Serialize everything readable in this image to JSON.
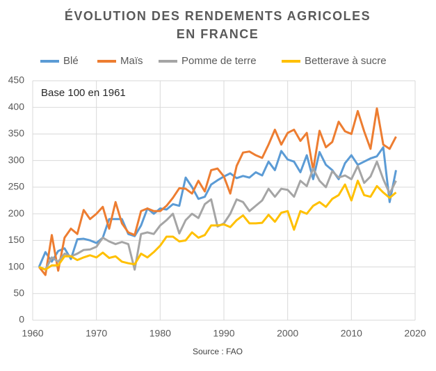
{
  "chart_data": {
    "type": "line",
    "title": [
      "ÉVOLUTION DES RENDEMENTS AGRICOLES",
      "EN FRANCE"
    ],
    "annotation": "Base 100 en 1961",
    "source": "Source : FAO",
    "x": [
      1961,
      1962,
      1963,
      1964,
      1965,
      1966,
      1967,
      1968,
      1969,
      1970,
      1971,
      1972,
      1973,
      1974,
      1975,
      1976,
      1977,
      1978,
      1979,
      1980,
      1981,
      1982,
      1983,
      1984,
      1985,
      1986,
      1987,
      1988,
      1989,
      1990,
      1991,
      1992,
      1993,
      1994,
      1995,
      1996,
      1997,
      1998,
      1999,
      2000,
      2001,
      2002,
      2003,
      2004,
      2005,
      2006,
      2007,
      2008,
      2009,
      2010,
      2011,
      2012,
      2013,
      2014,
      2015,
      2016,
      2017
    ],
    "series": [
      {
        "name": "Blé",
        "color": "#5b9bd5",
        "values": [
          100,
          128,
          110,
          130,
          135,
          115,
          152,
          153,
          150,
          145,
          155,
          190,
          190,
          190,
          162,
          158,
          178,
          210,
          200,
          210,
          208,
          218,
          215,
          268,
          250,
          228,
          232,
          255,
          263,
          270,
          276,
          267,
          271,
          268,
          278,
          272,
          298,
          282,
          318,
          302,
          298,
          278,
          310,
          265,
          316,
          292,
          282,
          265,
          295,
          310,
          292,
          298,
          304,
          308,
          325,
          222,
          282
        ]
      },
      {
        "name": "Maïs",
        "color": "#ed7d31",
        "values": [
          100,
          85,
          160,
          93,
          155,
          172,
          162,
          207,
          190,
          200,
          213,
          172,
          222,
          182,
          165,
          160,
          205,
          210,
          205,
          205,
          215,
          230,
          248,
          247,
          238,
          262,
          242,
          282,
          285,
          270,
          238,
          290,
          315,
          317,
          310,
          305,
          330,
          358,
          330,
          352,
          358,
          337,
          352,
          282,
          356,
          325,
          335,
          373,
          355,
          350,
          393,
          355,
          322,
          398,
          330,
          322,
          345
        ]
      },
      {
        "name": "Pomme de terre",
        "color": "#a5a5a5",
        "values": [
          100,
          95,
          118,
          110,
          125,
          120,
          125,
          132,
          133,
          138,
          155,
          148,
          143,
          147,
          143,
          95,
          162,
          165,
          162,
          178,
          188,
          200,
          163,
          188,
          200,
          192,
          218,
          227,
          176,
          182,
          200,
          227,
          222,
          205,
          215,
          225,
          247,
          232,
          247,
          245,
          232,
          262,
          252,
          285,
          262,
          250,
          280,
          268,
          272,
          265,
          290,
          258,
          270,
          298,
          265,
          238,
          262
        ]
      },
      {
        "name": "Betterave à sucre",
        "color": "#ffc000",
        "values": [
          100,
          95,
          103,
          103,
          120,
          120,
          113,
          118,
          122,
          118,
          127,
          117,
          120,
          110,
          107,
          105,
          125,
          118,
          128,
          140,
          157,
          157,
          148,
          150,
          165,
          155,
          160,
          178,
          178,
          180,
          175,
          188,
          197,
          182,
          182,
          183,
          198,
          185,
          202,
          205,
          170,
          205,
          200,
          215,
          222,
          213,
          228,
          235,
          255,
          225,
          262,
          235,
          232,
          252,
          240,
          230,
          240
        ]
      }
    ],
    "xlim": [
      1960,
      2020
    ],
    "xticks": [
      1960,
      1970,
      1980,
      1990,
      2000,
      2010,
      2020
    ],
    "ylim": [
      0,
      450
    ],
    "yticks": [
      0,
      50,
      100,
      150,
      200,
      250,
      300,
      350,
      400,
      450
    ],
    "grid": true,
    "legend": "top"
  }
}
